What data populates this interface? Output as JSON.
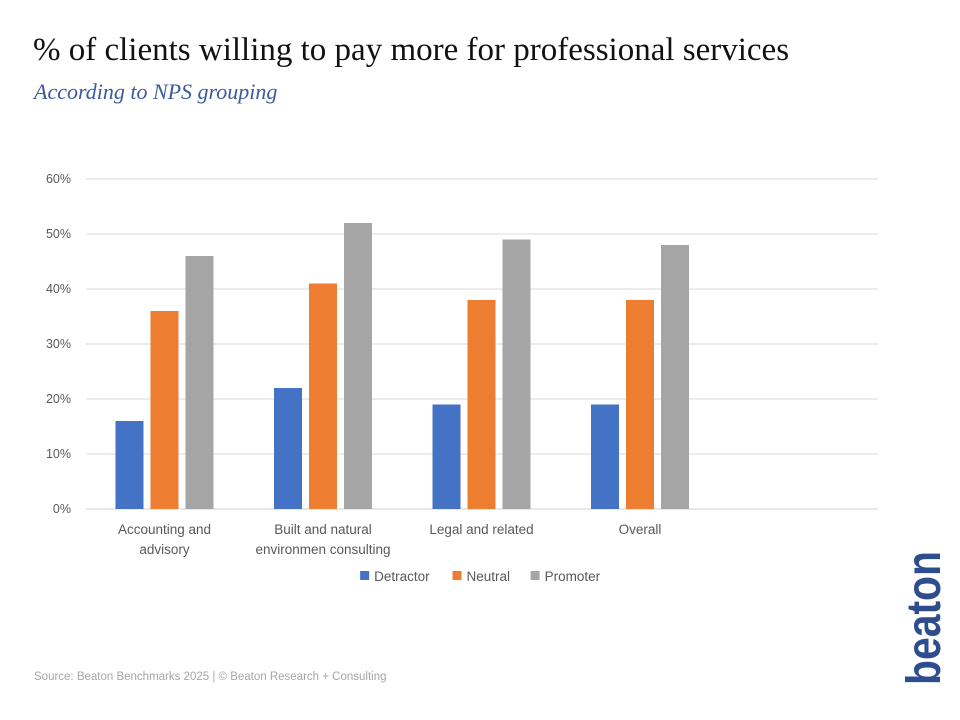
{
  "chart_data": {
    "type": "bar",
    "title": "% of clients willing to pay more for professional services",
    "subtitle": "According to NPS grouping",
    "categories": [
      [
        "Accounting and",
        "advisory"
      ],
      [
        "Built and natural",
        "environmen consulting"
      ],
      [
        "Legal and related"
      ],
      [
        "Overall"
      ]
    ],
    "series": [
      {
        "name": "Detractor",
        "color": "#4472c4",
        "values": [
          16,
          22,
          19,
          19
        ]
      },
      {
        "name": "Neutral",
        "color": "#ed7d31",
        "values": [
          36,
          41,
          38,
          38
        ]
      },
      {
        "name": "Promoter",
        "color": "#a5a5a5",
        "values": [
          46,
          52,
          49,
          48
        ]
      }
    ],
    "y_ticks": [
      "0%",
      "10%",
      "20%",
      "30%",
      "40%",
      "50%",
      "60%"
    ],
    "ylim": [
      0,
      60
    ],
    "grid": true,
    "legend_position": "bottom"
  },
  "footer": {
    "source": "Source: Beaton Benchmarks 2025 | © Beaton Research + Consulting"
  },
  "brand": {
    "logo_text": "beaton",
    "logo_color": "#2e4d8f"
  }
}
